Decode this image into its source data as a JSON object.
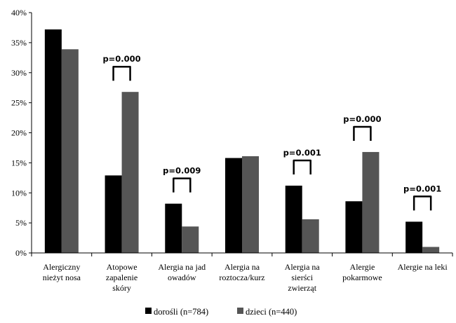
{
  "chart_data": {
    "type": "bar",
    "categories": [
      [
        "Alergiczny",
        "nieżyt nosa"
      ],
      [
        "Atopowe",
        "zapalenie",
        "skóry"
      ],
      [
        "Alergia na jad",
        "owadów"
      ],
      [
        "Alergia na",
        "roztocza/kurz"
      ],
      [
        "Alergia na",
        "sierści",
        "zwierząt"
      ],
      [
        "Alergie",
        "pokarmowe"
      ],
      [
        "Alergie na leki"
      ]
    ],
    "series": [
      {
        "name": "dorośli (n=784)",
        "color": "#000000",
        "values": [
          37.2,
          12.9,
          8.2,
          15.8,
          11.2,
          8.6,
          5.2
        ]
      },
      {
        "name": "dzieci (n=440)",
        "color": "#555555",
        "values": [
          33.9,
          26.8,
          4.4,
          16.1,
          5.6,
          16.8,
          1.0
        ]
      }
    ],
    "significance": [
      {
        "category_index": 1,
        "label": "p=0.000"
      },
      {
        "category_index": 2,
        "label": "p=0.009"
      },
      {
        "category_index": 4,
        "label": "p=0.001"
      },
      {
        "category_index": 5,
        "label": "p=0.000"
      },
      {
        "category_index": 6,
        "label": "p=0.001"
      }
    ],
    "yticks": [
      "0%",
      "5%",
      "10%",
      "15%",
      "20%",
      "25%",
      "30%",
      "35%",
      "40%"
    ],
    "ylim": [
      0,
      40
    ],
    "grid": false,
    "legend_position": "bottom-center"
  }
}
